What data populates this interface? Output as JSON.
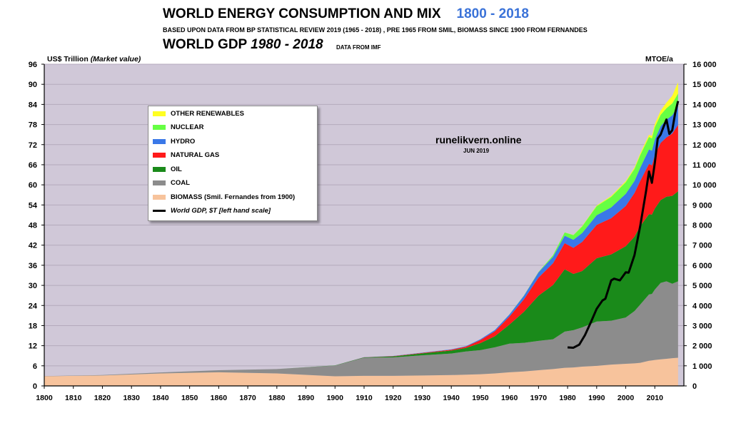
{
  "title": {
    "main": "WORLD ENERGY CONSUMPTION AND MIX",
    "years": "1800 - 2018"
  },
  "subtitle": "BASED UPON DATA FROM BP STATISTICAL REVIEW 2019 (1965 - 2018) , PRE 1965 FROM SMIL,  BIOMASS SINCE 1900 FROM FERNANDES",
  "gdp_title": {
    "text": "WORLD GDP",
    "years": "1980 - 2018"
  },
  "gdp_source": "DATA FROM  IMF",
  "left_axis_title": {
    "text": "US$ Trillion",
    "note": "(Market value)"
  },
  "right_axis_title": "MTOE/a",
  "watermark": {
    "site": "runelikvern.online",
    "date": "JUN 2019"
  },
  "colors": {
    "biomass": "#f7c39c",
    "coal": "#8c8c8c",
    "oil": "#1a8a1a",
    "gas": "#ff1a1a",
    "hydro": "#3a78e8",
    "nuclear": "#66ff44",
    "renewables": "#ffff22",
    "gdp": "#000000",
    "plot_bg": "#d0c8d8",
    "grid": "#b4aabc"
  },
  "chart_data": {
    "type": "area",
    "title": "WORLD ENERGY CONSUMPTION AND MIX 1800 - 2018",
    "xlabel": "",
    "ylabel_left": "US$ Trillion (Market value)",
    "ylabel_right": "MTOE/a",
    "xlim": [
      1800,
      2020
    ],
    "ylim_left": [
      0,
      96
    ],
    "ylim_right": [
      0,
      16000
    ],
    "x_ticks": [
      1800,
      1810,
      1820,
      1830,
      1840,
      1850,
      1860,
      1870,
      1880,
      1890,
      1900,
      1910,
      1920,
      1930,
      1940,
      1950,
      1960,
      1970,
      1980,
      1990,
      2000,
      2010
    ],
    "y_left_ticks": [
      0,
      6,
      12,
      18,
      24,
      30,
      36,
      42,
      48,
      54,
      60,
      66,
      72,
      78,
      84,
      90,
      96
    ],
    "y_right_ticks": [
      0,
      1000,
      2000,
      3000,
      4000,
      5000,
      6000,
      7000,
      8000,
      9000,
      10000,
      11000,
      12000,
      13000,
      14000,
      15000,
      16000
    ],
    "y_right_tick_labels": [
      "0",
      "1 000",
      "2 000",
      "3 000",
      "4 000",
      "5 000",
      "6 000",
      "7 000",
      "8 000",
      "9 000",
      "10 000",
      "11 000",
      "12 000",
      "13 000",
      "14 000",
      "15 000",
      "16 000"
    ],
    "x": [
      1800,
      1820,
      1840,
      1860,
      1880,
      1900,
      1910,
      1920,
      1930,
      1940,
      1945,
      1950,
      1955,
      1960,
      1965,
      1970,
      1975,
      1979,
      1982,
      1985,
      1990,
      1995,
      2000,
      2003,
      2005,
      2008,
      2009,
      2010,
      2012,
      2014,
      2016,
      2018
    ],
    "stacked_series": [
      {
        "name": "BIOMASS (Smil. Fernandes from 1900)",
        "color_key": "biomass",
        "values": [
          480,
          520,
          620,
          680,
          620,
          480,
          500,
          500,
          520,
          540,
          560,
          580,
          620,
          680,
          720,
          780,
          840,
          900,
          920,
          960,
          1000,
          1060,
          1100,
          1120,
          1150,
          1250,
          1270,
          1290,
          1320,
          1350,
          1380,
          1400
        ]
      },
      {
        "name": "COAL",
        "color_key": "coal",
        "values": [
          10,
          20,
          50,
          100,
          220,
          530,
          900,
          920,
          1000,
          1070,
          1150,
          1200,
          1300,
          1420,
          1420,
          1460,
          1480,
          1800,
          1850,
          1950,
          2200,
          2180,
          2300,
          2600,
          2900,
          3300,
          3300,
          3500,
          3800,
          3850,
          3700,
          3800
        ]
      },
      {
        "name": "OIL",
        "color_key": "oil",
        "values": [
          0,
          0,
          0,
          0,
          0,
          10,
          20,
          50,
          100,
          150,
          180,
          350,
          550,
          950,
          1550,
          2250,
          2700,
          3100,
          2800,
          2800,
          3150,
          3300,
          3550,
          3700,
          3900,
          3990,
          3950,
          4030,
          4120,
          4210,
          4370,
          4480
        ]
      },
      {
        "name": "NATURAL GAS",
        "color_key": "gas",
        "values": [
          0,
          0,
          0,
          0,
          0,
          0,
          5,
          10,
          20,
          40,
          60,
          150,
          250,
          400,
          620,
          900,
          1080,
          1300,
          1300,
          1450,
          1660,
          1800,
          2000,
          2170,
          2250,
          2500,
          2450,
          2650,
          2850,
          2950,
          3100,
          3300
        ]
      },
      {
        "name": "HYDRO",
        "color_key": "hydro",
        "values": [
          0,
          0,
          0,
          0,
          0,
          0,
          5,
          10,
          15,
          20,
          25,
          40,
          60,
          100,
          180,
          260,
          320,
          370,
          400,
          440,
          480,
          540,
          600,
          600,
          650,
          720,
          730,
          780,
          830,
          880,
          910,
          950
        ]
      },
      {
        "name": "NUCLEAR",
        "color_key": "nuclear",
        "values": [
          0,
          0,
          0,
          0,
          0,
          0,
          0,
          0,
          0,
          0,
          0,
          0,
          0,
          5,
          10,
          18,
          80,
          160,
          230,
          330,
          450,
          520,
          580,
          600,
          630,
          620,
          610,
          620,
          560,
          570,
          590,
          610
        ]
      },
      {
        "name": "OTHER RENEWABLES",
        "color_key": "renewables",
        "values": [
          0,
          0,
          0,
          0,
          0,
          0,
          0,
          0,
          0,
          0,
          0,
          0,
          0,
          0,
          0,
          2,
          4,
          6,
          8,
          15,
          30,
          45,
          55,
          65,
          80,
          110,
          130,
          150,
          210,
          280,
          380,
          560
        ]
      }
    ],
    "gdp_series": {
      "name": "World GDP, $T [left hand scale]",
      "color_key": "gdp",
      "axis": "left",
      "x": [
        1980,
        1982,
        1984,
        1986,
        1988,
        1990,
        1992,
        1993,
        1995,
        1996,
        1998,
        2000,
        2001,
        2003,
        2005,
        2007,
        2008,
        2009,
        2010,
        2011,
        2012,
        2013,
        2014,
        2015,
        2016,
        2017,
        2018
      ],
      "values": [
        11.5,
        11.4,
        12.3,
        15.2,
        19.0,
        23.0,
        25.5,
        26.0,
        31.5,
        32.0,
        31.5,
        33.9,
        33.8,
        39.0,
        47.8,
        58.2,
        64.0,
        60.6,
        66.5,
        73.8,
        75.0,
        77.3,
        79.5,
        75.2,
        76.3,
        81.4,
        85.0
      ]
    },
    "legend": {
      "placement": "upper-left",
      "items": [
        {
          "label": "OTHER RENEWABLES",
          "color_key": "renewables",
          "kind": "patch"
        },
        {
          "label": "NUCLEAR",
          "color_key": "nuclear",
          "kind": "patch"
        },
        {
          "label": "HYDRO",
          "color_key": "hydro",
          "kind": "patch"
        },
        {
          "label": "NATURAL GAS",
          "color_key": "gas",
          "kind": "patch"
        },
        {
          "label": "OIL",
          "color_key": "oil",
          "kind": "patch"
        },
        {
          "label": "COAL",
          "color_key": "coal",
          "kind": "patch"
        },
        {
          "label": "BIOMASS (Smil. Fernandes from 1900)",
          "color_key": "biomass",
          "kind": "patch"
        },
        {
          "label": "World GDP, $T [left hand scale]",
          "color_key": "gdp",
          "kind": "line"
        }
      ]
    }
  }
}
